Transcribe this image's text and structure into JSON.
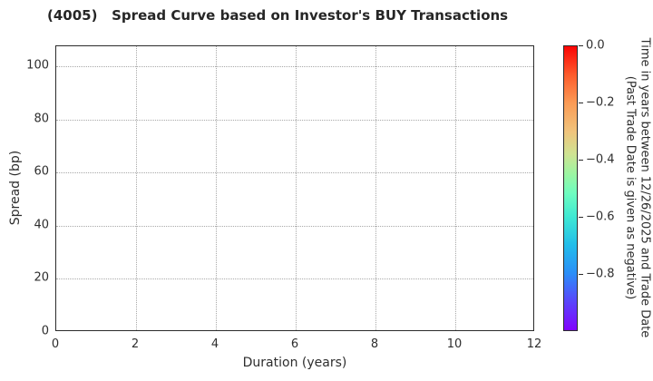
{
  "title": "(4005)   Spread Curve based on Investor's BUY Transactions",
  "colors": {
    "background": "#ffffff",
    "spine": "#2b2b2b",
    "grid": "#a9a9a9",
    "text": "#2e2e2e"
  },
  "chart_data": {
    "type": "scatter",
    "title": "(4005)   Spread Curve based on Investor's BUY Transactions",
    "xlabel": "Duration (years)",
    "ylabel": "Spread (bp)",
    "xlim": [
      0,
      12
    ],
    "ylim": [
      0,
      107.5
    ],
    "xticks": [
      0,
      2,
      4,
      6,
      8,
      10,
      12
    ],
    "xtick_labels": [
      "0",
      "2",
      "4",
      "6",
      "8",
      "10",
      "12"
    ],
    "yticks": [
      0,
      20,
      40,
      60,
      80,
      100
    ],
    "ytick_labels": [
      "0",
      "20",
      "40",
      "60",
      "80",
      "100"
    ],
    "grid": true,
    "grid_style": "dotted",
    "points": [],
    "colorbar": {
      "label_line1": "Time in years between 12/26/2025 and Trade Date",
      "label_line2": "(Past Trade Date is given as negative)",
      "range": [
        -1.0,
        0.0
      ],
      "tick_values": [
        0.0,
        -0.2,
        -0.4,
        -0.6,
        -0.8
      ],
      "tick_labels": [
        "0.0",
        "−0.2",
        "−0.4",
        "−0.6",
        "−0.8"
      ],
      "colormap": "rainbow_reversed",
      "stops": [
        {
          "pos": 0.0,
          "color": "#fb0404"
        },
        {
          "pos": 0.1,
          "color": "#fc5b2c"
        },
        {
          "pos": 0.2,
          "color": "#fb9b55"
        },
        {
          "pos": 0.3,
          "color": "#f0c37c"
        },
        {
          "pos": 0.38,
          "color": "#cfe392"
        },
        {
          "pos": 0.45,
          "color": "#9cf5a2"
        },
        {
          "pos": 0.52,
          "color": "#6dfcc0"
        },
        {
          "pos": 0.6,
          "color": "#3fe9d3"
        },
        {
          "pos": 0.7,
          "color": "#22bdea"
        },
        {
          "pos": 0.8,
          "color": "#2b8ef8"
        },
        {
          "pos": 0.9,
          "color": "#5a45fb"
        },
        {
          "pos": 1.0,
          "color": "#8103fd"
        }
      ]
    }
  }
}
